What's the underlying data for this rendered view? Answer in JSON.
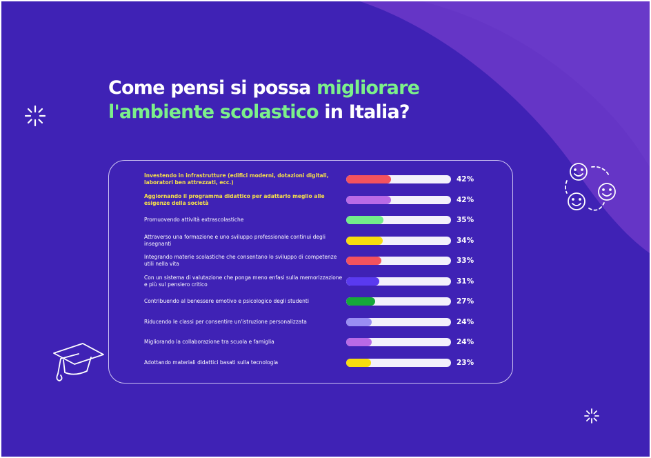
{
  "title": {
    "part1": "Come pensi si possa ",
    "highlight1": "migliorare",
    "highlight2": "l'ambiente scolastico",
    "part2": " in Italia?"
  },
  "colors": {
    "background": "#3f22b5",
    "background_wave": "#6535c6",
    "title_highlight": "#7cf08a",
    "highlight_label": "#f6e04a",
    "track": "#f3f1fb"
  },
  "chart_data": {
    "type": "bar",
    "orientation": "horizontal",
    "unit": "%",
    "categories": [
      "Investendo in infrastrutture (edifici moderni, dotazioni digitali, laboratori ben attrezzati, ecc.)",
      "Aggiornando il programma didattico per adattarlo meglio alle esigenze della società",
      "Promuovendo attività extrascolastiche",
      "Attraverso una formazione e uno sviluppo professionale continui degli insegnanti",
      "Integrando materie scolastiche che consentano lo sviluppo di competenze utili nella vita",
      "Con un sistema di valutazione che ponga meno enfasi sulla memorizzazione e più sul pensiero critico",
      "Contribuendo al benessere emotivo e psicologico degli studenti",
      "Riducendo le classi per consentire un'istruzione personalizzata",
      "Migliorando la collaborazione tra scuola e famiglia",
      "Adottando materiali didattici basati sulla tecnologia"
    ],
    "values": [
      42,
      42,
      35,
      34,
      33,
      31,
      27,
      24,
      24,
      23
    ],
    "labels": [
      "42%",
      "42%",
      "35%",
      "34%",
      "33%",
      "31%",
      "27%",
      "24%",
      "24%",
      "23%"
    ],
    "bar_colors": [
      "#f4525e",
      "#b96ae6",
      "#73ec8a",
      "#f7dd0e",
      "#f4525e",
      "#5a3af0",
      "#16a83a",
      "#9a8ef3",
      "#b96ae6",
      "#f7dd0e"
    ],
    "highlighted": [
      true,
      true,
      false,
      false,
      false,
      false,
      false,
      false,
      false,
      false
    ],
    "xlim": [
      0,
      100
    ]
  }
}
